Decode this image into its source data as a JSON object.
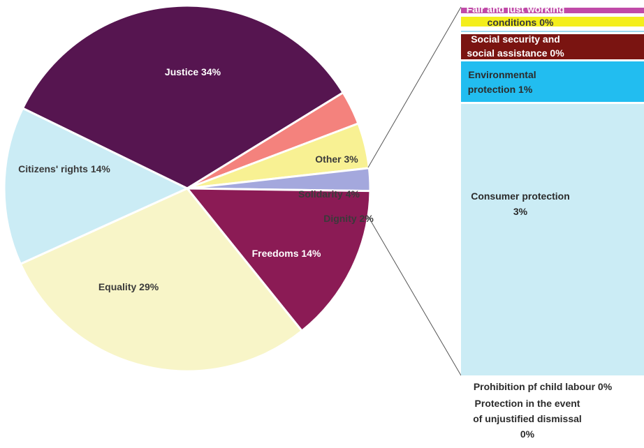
{
  "chart_data": [
    {
      "type": "pie",
      "title": "",
      "slices": [
        {
          "label": "Justice 34%",
          "value": 34,
          "color": "#561550",
          "text_color": "#ffffff"
        },
        {
          "label": "Other 3%",
          "value": 3,
          "color": "#f4827d",
          "text_color": "#3a3a3a"
        },
        {
          "label": "Solidarity 4%",
          "value": 4,
          "color": "#f8f193",
          "text_color": "#3a3a3a"
        },
        {
          "label": "Dignity 2%",
          "value": 2,
          "color": "#a4a8dd",
          "text_color": "#3a3a3a"
        },
        {
          "label": "Freedoms 14%",
          "value": 14,
          "color": "#8b1b55",
          "text_color": "#ffffff"
        },
        {
          "label": "Equality 29%",
          "value": 29,
          "color": "#f8f5c8",
          "text_color": "#3a3a3a"
        },
        {
          "label": "Citizens' rights 14%",
          "value": 14,
          "color": "#cbecf5",
          "text_color": "#3a3a3a"
        }
      ]
    },
    {
      "type": "bar",
      "orientation": "stacked-vertical",
      "description_of": "Solidarity breakdown",
      "segments": [
        {
          "label_lines": [
            "Fair and just working",
            "conditions 0%"
          ],
          "value": 0,
          "color": "#c04aa8"
        },
        {
          "label_lines": [],
          "value": 0,
          "color": "#f4ee1c"
        },
        {
          "label_lines": [
            "Social  security  and",
            "social  assistance  0%"
          ],
          "value": 0,
          "color": "#7a1411"
        },
        {
          "label_lines": [
            "Environmental",
            "protection 1%"
          ],
          "value": 1,
          "color": "#22bdf0"
        },
        {
          "label_lines": [
            "Consumer protection",
            "3%"
          ],
          "value": 3,
          "color": "#cbecf5"
        }
      ],
      "below_labels": [
        "Prohibition pf child labour 0%",
        "Protection in the event",
        "of unjustified dismissal",
        "0%"
      ]
    }
  ]
}
